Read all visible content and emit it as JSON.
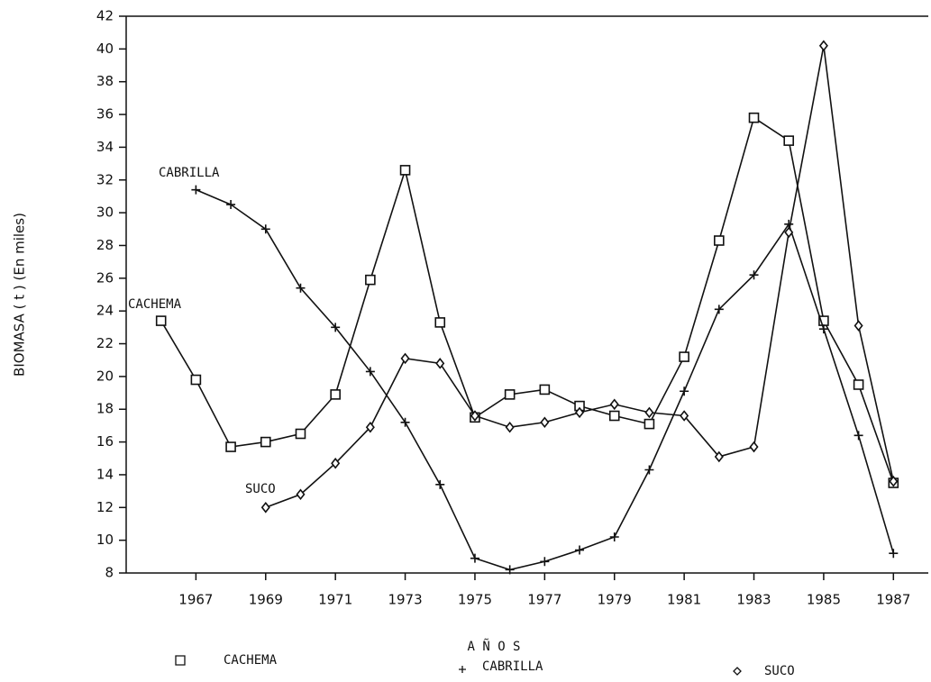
{
  "chart_data": {
    "type": "line",
    "ylabel": "BIOMASA ( t ) (En miles)",
    "xlabel": "A Ñ O S",
    "x": [
      1966,
      1967,
      1968,
      1969,
      1970,
      1971,
      1972,
      1973,
      1974,
      1975,
      1976,
      1977,
      1978,
      1979,
      1980,
      1981,
      1982,
      1983,
      1984,
      1985,
      1986,
      1987
    ],
    "series": [
      {
        "name": "CACHEMA",
        "color": "#111111",
        "marker": "square",
        "values": [
          23.4,
          19.8,
          15.7,
          16.0,
          16.5,
          18.9,
          25.9,
          32.6,
          23.3,
          17.5,
          18.9,
          19.2,
          18.2,
          17.6,
          17.1,
          21.2,
          28.3,
          35.8,
          34.4,
          23.4,
          19.5,
          13.5
        ]
      },
      {
        "name": "CABRILLA",
        "color": "#111111",
        "marker": "plus",
        "values": [
          null,
          31.4,
          30.5,
          29.0,
          25.4,
          23.0,
          20.3,
          17.2,
          13.4,
          8.9,
          8.2,
          8.7,
          9.4,
          10.2,
          14.3,
          19.1,
          24.1,
          26.2,
          29.3,
          22.9,
          16.4,
          9.2
        ]
      },
      {
        "name": "SUCO",
        "color": "#111111",
        "marker": "diamond",
        "values": [
          null,
          null,
          null,
          12.0,
          12.8,
          14.7,
          16.9,
          21.1,
          20.8,
          17.6,
          16.9,
          17.2,
          17.8,
          18.3,
          17.8,
          17.6,
          15.1,
          15.7,
          28.8,
          40.2,
          23.1,
          13.6
        ]
      }
    ],
    "xlim": [
      1965,
      1988
    ],
    "xticks": [
      1967,
      1969,
      1971,
      1973,
      1975,
      1977,
      1979,
      1981,
      1983,
      1985,
      1987
    ],
    "ylim": [
      8,
      42
    ],
    "yticks": [
      8,
      10,
      12,
      14,
      16,
      18,
      20,
      22,
      24,
      26,
      28,
      30,
      32,
      34,
      36,
      38,
      40,
      42
    ],
    "grid": false
  }
}
